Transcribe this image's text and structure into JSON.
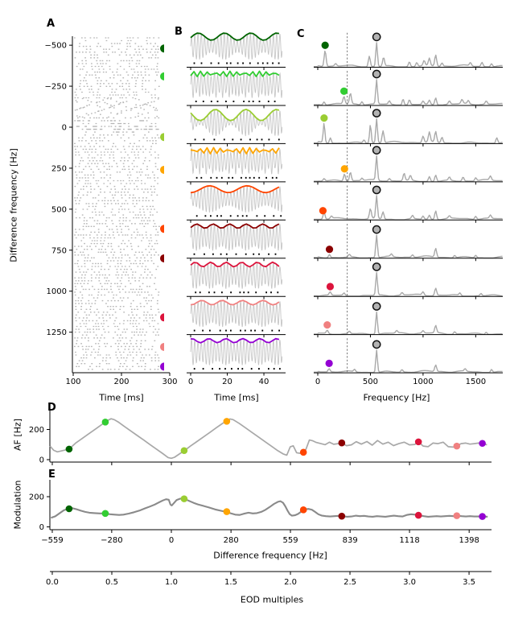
{
  "figure": {
    "background": "#ffffff"
  },
  "panels": {
    "a": {
      "label": "A",
      "xlabel": "Time [ms]",
      "ylabel": "Difference frequency [Hz]",
      "xticks": [
        100,
        200,
        300
      ],
      "yticks": [
        -500,
        -250,
        0,
        250,
        500,
        750,
        1000,
        1250
      ]
    },
    "b": {
      "label": "B",
      "xlabel": "Time [ms]",
      "xticks": [
        0,
        20,
        40
      ]
    },
    "c": {
      "label": "C",
      "xlabel": "Frequency [Hz]",
      "xticks": [
        0,
        500,
        1000,
        1500
      ],
      "dashed_line_hz": 280,
      "eod_peak_hz": 559,
      "eod_peak_marker": "open-circle"
    },
    "d": {
      "label": "D",
      "ylabel": "AF [Hz]",
      "yticks": [
        0,
        200
      ]
    },
    "e": {
      "label": "E",
      "ylabel": "Modulation",
      "yticks": [
        0,
        200
      ],
      "xlabel": "Difference frequency [Hz]",
      "xticks": [
        -559,
        -280,
        0,
        280,
        559,
        839,
        1118,
        1398
      ]
    },
    "eod_axis": {
      "xlabel": "EOD multiples",
      "xticks": [
        0.0,
        0.5,
        1.0,
        1.5,
        2.0,
        2.5,
        3.0,
        3.5
      ]
    }
  },
  "colors": {
    "raster": "#b5b5b5",
    "carrier": "#c6c6c6",
    "spectrum": "#a9a9a9",
    "d_curve": "#a8a8a8",
    "e_curve": "#8a8a8a",
    "axis": "#000000",
    "eod_marker_fill": "#b3b3b3",
    "eod_marker_stroke": "#111111",
    "dashed_line": "#666666",
    "spike": "#000000"
  },
  "chart_data": {
    "type": "multi-panel-figure",
    "eodf_hz": 559,
    "b_traces": {
      "duration_ms": 50,
      "carrier_hz": 559
    },
    "conditions": [
      {
        "name": "dark-green",
        "color": "#006400",
        "df_hz": -480,
        "af_hz": 70,
        "modulation_hz": 120,
        "spectrum_peaks": [
          [
            70,
            20
          ],
          [
            170,
            3
          ],
          [
            490,
            13
          ],
          [
            559,
            30
          ],
          [
            625,
            11
          ],
          [
            870,
            6
          ],
          [
            940,
            5
          ],
          [
            1010,
            6
          ],
          [
            1060,
            9
          ],
          [
            1120,
            14
          ],
          [
            1180,
            4
          ],
          [
            1450,
            4
          ],
          [
            1560,
            5
          ],
          [
            1650,
            4
          ]
        ]
      },
      {
        "name": "lime-green",
        "color": "#32CD32",
        "df_hz": -310,
        "af_hz": 249,
        "modulation_hz": 89,
        "spectrum_peaks": [
          [
            60,
            4
          ],
          [
            249,
            9
          ],
          [
            310,
            13
          ],
          [
            420,
            4
          ],
          [
            559,
            30
          ],
          [
            680,
            4
          ],
          [
            810,
            8
          ],
          [
            870,
            6
          ],
          [
            1000,
            4
          ],
          [
            1060,
            5
          ],
          [
            1120,
            9
          ],
          [
            1250,
            4
          ],
          [
            1370,
            5
          ],
          [
            1430,
            4
          ],
          [
            1600,
            4
          ]
        ]
      },
      {
        "name": "yellow-green",
        "color": "#9ACD32",
        "df_hz": 60,
        "af_hz": 60,
        "modulation_hz": 186,
        "spectrum_peaks": [
          [
            60,
            24
          ],
          [
            120,
            7
          ],
          [
            440,
            4
          ],
          [
            500,
            23
          ],
          [
            559,
            30
          ],
          [
            620,
            15
          ],
          [
            1000,
            8
          ],
          [
            1060,
            12
          ],
          [
            1120,
            13
          ],
          [
            1180,
            7
          ],
          [
            1700,
            7
          ]
        ]
      },
      {
        "name": "orange",
        "color": "#FFA500",
        "df_hz": 260,
        "af_hz": 254,
        "modulation_hz": 101,
        "spectrum_peaks": [
          [
            60,
            3
          ],
          [
            254,
            9
          ],
          [
            310,
            11
          ],
          [
            420,
            3
          ],
          [
            559,
            30
          ],
          [
            680,
            3
          ],
          [
            820,
            9
          ],
          [
            880,
            6
          ],
          [
            1060,
            6
          ],
          [
            1120,
            8
          ],
          [
            1250,
            4
          ],
          [
            1380,
            5
          ],
          [
            1500,
            4
          ],
          [
            1640,
            5
          ]
        ]
      },
      {
        "name": "orange-red",
        "color": "#FF4500",
        "df_hz": 620,
        "af_hz": 49,
        "modulation_hz": 113,
        "spectrum_peaks": [
          [
            60,
            9
          ],
          [
            130,
            3
          ],
          [
            500,
            12
          ],
          [
            559,
            28
          ],
          [
            620,
            9
          ],
          [
            900,
            4
          ],
          [
            1000,
            4
          ],
          [
            1060,
            5
          ],
          [
            1120,
            11
          ],
          [
            1250,
            3
          ],
          [
            1500,
            4
          ],
          [
            1640,
            4
          ]
        ]
      },
      {
        "name": "dark-red",
        "color": "#8B0000",
        "df_hz": 800,
        "af_hz": 111,
        "modulation_hz": 71,
        "spectrum_peaks": [
          [
            111,
            4
          ],
          [
            300,
            3
          ],
          [
            559,
            28
          ],
          [
            700,
            3
          ],
          [
            900,
            3
          ],
          [
            1120,
            11
          ],
          [
            1300,
            3
          ],
          [
            1500,
            3
          ]
        ]
      },
      {
        "name": "crimson",
        "color": "#DC143C",
        "df_hz": 1160,
        "af_hz": 118,
        "modulation_hz": 77,
        "spectrum_peaks": [
          [
            118,
            4
          ],
          [
            250,
            3
          ],
          [
            559,
            28
          ],
          [
            800,
            3
          ],
          [
            1000,
            4
          ],
          [
            1120,
            9
          ],
          [
            1350,
            3
          ],
          [
            1550,
            3
          ]
        ]
      },
      {
        "name": "light-coral",
        "color": "#F08080",
        "df_hz": 1340,
        "af_hz": 90,
        "modulation_hz": 74,
        "spectrum_peaks": [
          [
            90,
            4
          ],
          [
            300,
            3
          ],
          [
            559,
            28
          ],
          [
            750,
            3
          ],
          [
            1000,
            3
          ],
          [
            1120,
            9
          ],
          [
            1300,
            3
          ],
          [
            1600,
            3
          ]
        ]
      },
      {
        "name": "dark-violet",
        "color": "#9400D3",
        "df_hz": 1460,
        "af_hz": 108,
        "modulation_hz": 69,
        "spectrum_peaks": [
          [
            108,
            4
          ],
          [
            350,
            3
          ],
          [
            559,
            28
          ],
          [
            800,
            3
          ],
          [
            1120,
            8
          ],
          [
            1400,
            3
          ],
          [
            1650,
            4
          ]
        ]
      }
    ],
    "d_curve": {
      "xlabel": "Difference frequency [Hz]",
      "ylabel": "AF [Hz]",
      "points": [
        [
          -590,
          103
        ],
        [
          -570,
          90
        ],
        [
          -552,
          62
        ],
        [
          -535,
          52
        ],
        [
          -515,
          58
        ],
        [
          -495,
          65
        ],
        [
          -480,
          70
        ],
        [
          -450,
          109
        ],
        [
          -420,
          139
        ],
        [
          -390,
          169
        ],
        [
          -360,
          199
        ],
        [
          -330,
          229
        ],
        [
          -300,
          259
        ],
        [
          -283,
          271
        ],
        [
          -268,
          265
        ],
        [
          -250,
          250
        ],
        [
          -220,
          220
        ],
        [
          -190,
          190
        ],
        [
          -160,
          160
        ],
        [
          -130,
          130
        ],
        [
          -100,
          100
        ],
        [
          -70,
          70
        ],
        [
          -40,
          40
        ],
        [
          -15,
          14
        ],
        [
          0,
          9
        ],
        [
          15,
          16
        ],
        [
          40,
          40
        ],
        [
          60,
          58
        ],
        [
          90,
          90
        ],
        [
          120,
          120
        ],
        [
          150,
          150
        ],
        [
          180,
          180
        ],
        [
          210,
          210
        ],
        [
          240,
          240
        ],
        [
          258,
          254
        ],
        [
          275,
          270
        ],
        [
          290,
          265
        ],
        [
          320,
          239
        ],
        [
          350,
          209
        ],
        [
          380,
          179
        ],
        [
          410,
          149
        ],
        [
          440,
          119
        ],
        [
          470,
          89
        ],
        [
          500,
          59
        ],
        [
          525,
          38
        ],
        [
          542,
          30
        ],
        [
          558,
          85
        ],
        [
          572,
          92
        ],
        [
          588,
          46
        ],
        [
          602,
          42
        ],
        [
          618,
          49
        ],
        [
          632,
          70
        ],
        [
          648,
          130
        ],
        [
          662,
          126
        ],
        [
          680,
          114
        ],
        [
          700,
          107
        ],
        [
          722,
          99
        ],
        [
          742,
          116
        ],
        [
          762,
          102
        ],
        [
          782,
          106
        ],
        [
          800,
          111
        ],
        [
          822,
          93
        ],
        [
          845,
          98
        ],
        [
          868,
          119
        ],
        [
          892,
          103
        ],
        [
          918,
          120
        ],
        [
          943,
          96
        ],
        [
          968,
          127
        ],
        [
          993,
          103
        ],
        [
          1018,
          116
        ],
        [
          1043,
          93
        ],
        [
          1068,
          106
        ],
        [
          1093,
          116
        ],
        [
          1118,
          98
        ],
        [
          1143,
          101
        ],
        [
          1160,
          118
        ],
        [
          1182,
          90
        ],
        [
          1205,
          86
        ],
        [
          1228,
          110
        ],
        [
          1252,
          106
        ],
        [
          1276,
          116
        ],
        [
          1300,
          86
        ],
        [
          1322,
          83
        ],
        [
          1340,
          90
        ],
        [
          1360,
          106
        ],
        [
          1382,
          110
        ],
        [
          1402,
          103
        ],
        [
          1422,
          106
        ],
        [
          1442,
          110
        ],
        [
          1460,
          108
        ],
        [
          1482,
          98
        ],
        [
          1505,
          93
        ]
      ]
    },
    "e_curve": {
      "xlabel": "Difference frequency [Hz]",
      "ylabel": "Modulation",
      "points": [
        [
          -590,
          57
        ],
        [
          -565,
          60
        ],
        [
          -545,
          70
        ],
        [
          -525,
          90
        ],
        [
          -505,
          110
        ],
        [
          -485,
          120
        ],
        [
          -465,
          124
        ],
        [
          -445,
          117
        ],
        [
          -425,
          107
        ],
        [
          -405,
          99
        ],
        [
          -385,
          94
        ],
        [
          -360,
          91
        ],
        [
          -335,
          89
        ],
        [
          -310,
          89
        ],
        [
          -288,
          84
        ],
        [
          -265,
          81
        ],
        [
          -245,
          79
        ],
        [
          -225,
          81
        ],
        [
          -200,
          88
        ],
        [
          -175,
          97
        ],
        [
          -150,
          108
        ],
        [
          -125,
          122
        ],
        [
          -100,
          135
        ],
        [
          -78,
          148
        ],
        [
          -58,
          162
        ],
        [
          -40,
          175
        ],
        [
          -25,
          183
        ],
        [
          -12,
          180
        ],
        [
          -4,
          148
        ],
        [
          2,
          142
        ],
        [
          12,
          158
        ],
        [
          25,
          178
        ],
        [
          40,
          186
        ],
        [
          55,
          189
        ],
        [
          68,
          182
        ],
        [
          85,
          171
        ],
        [
          105,
          159
        ],
        [
          125,
          149
        ],
        [
          148,
          140
        ],
        [
          175,
          129
        ],
        [
          205,
          116
        ],
        [
          235,
          106
        ],
        [
          258,
          99
        ],
        [
          280,
          89
        ],
        [
          300,
          81
        ],
        [
          320,
          79
        ],
        [
          340,
          87
        ],
        [
          362,
          94
        ],
        [
          382,
          89
        ],
        [
          402,
          91
        ],
        [
          422,
          99
        ],
        [
          442,
          113
        ],
        [
          462,
          132
        ],
        [
          482,
          152
        ],
        [
          500,
          166
        ],
        [
          512,
          170
        ],
        [
          524,
          160
        ],
        [
          535,
          136
        ],
        [
          546,
          106
        ],
        [
          556,
          84
        ],
        [
          566,
          74
        ],
        [
          580,
          77
        ],
        [
          595,
          86
        ],
        [
          608,
          99
        ],
        [
          618,
          111
        ],
        [
          630,
          117
        ],
        [
          645,
          119
        ],
        [
          660,
          113
        ],
        [
          675,
          99
        ],
        [
          690,
          84
        ],
        [
          705,
          75
        ],
        [
          725,
          71
        ],
        [
          745,
          69
        ],
        [
          765,
          71
        ],
        [
          785,
          73
        ],
        [
          805,
          71
        ],
        [
          825,
          67
        ],
        [
          845,
          69
        ],
        [
          865,
          74
        ],
        [
          885,
          71
        ],
        [
          905,
          73
        ],
        [
          925,
          69
        ],
        [
          945,
          67
        ],
        [
          965,
          71
        ],
        [
          985,
          69
        ],
        [
          1005,
          67
        ],
        [
          1025,
          71
        ],
        [
          1045,
          74
        ],
        [
          1065,
          71
        ],
        [
          1085,
          69
        ],
        [
          1105,
          79
        ],
        [
          1125,
          84
        ],
        [
          1145,
          81
        ],
        [
          1162,
          77
        ],
        [
          1185,
          71
        ],
        [
          1205,
          67
        ],
        [
          1225,
          69
        ],
        [
          1245,
          71
        ],
        [
          1265,
          69
        ],
        [
          1285,
          71
        ],
        [
          1305,
          73
        ],
        [
          1325,
          71
        ],
        [
          1342,
          74
        ],
        [
          1362,
          71
        ],
        [
          1382,
          69
        ],
        [
          1402,
          71
        ],
        [
          1422,
          69
        ],
        [
          1445,
          69
        ],
        [
          1465,
          69
        ],
        [
          1485,
          67
        ],
        [
          1505,
          67
        ]
      ]
    }
  }
}
